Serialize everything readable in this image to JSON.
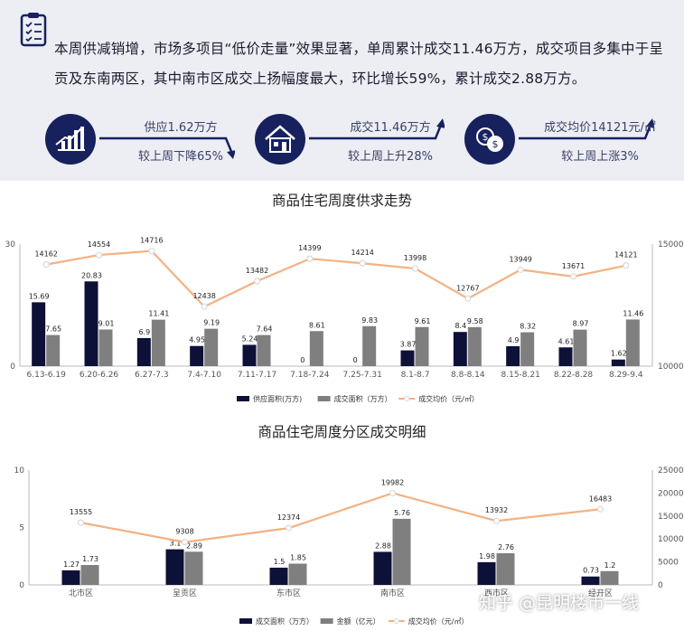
{
  "summary": {
    "text": "本周供减销增，市场多项目“低价走量”效果显著，单周累计成交11.46万方，成交项目多集中于呈贡及东南两区，其中南市区成交上扬幅度最大，环比增长59%，累计成交2.88万方。"
  },
  "stats": [
    {
      "line1": "供应1.62万方",
      "line2": "较上周下降65%",
      "icon": "bar-chart-icon"
    },
    {
      "line1": "成交11.46万方",
      "line2": "较上周上升28%",
      "icon": "house-icon"
    },
    {
      "line1": "成交均价14121元/㎡",
      "line2": "较上周上涨3%",
      "icon": "dollar-coins-icon"
    }
  ],
  "colors": {
    "navy": "#0d1137",
    "gray": "#7f7f7f",
    "orange": "#f4b183",
    "banner": "#eceef4",
    "icon": "#17215e"
  },
  "watermark": "知乎 @昆明楼市一线",
  "chart_data": [
    {
      "type": "bar",
      "title": "商品住宅周度供求走势",
      "categories": [
        "6.13-6.19",
        "6.20-6.26",
        "6.27-7.3",
        "7.4-7.10",
        "7.11-7.17",
        "7.18-7.24",
        "7.25-7.31",
        "8.1-8.7",
        "8.8-8.14",
        "8.15-8.21",
        "8.22-8.28",
        "8.29-9.4"
      ],
      "series": [
        {
          "name": "供应面积(万方)",
          "type": "bar",
          "axis": "left",
          "values": [
            15.69,
            20.83,
            6.9,
            4.95,
            5.24,
            0,
            0,
            3.87,
            8.4,
            4.9,
            4.61,
            1.62
          ]
        },
        {
          "name": "成交面积（万方）",
          "type": "bar",
          "axis": "left",
          "values": [
            7.65,
            9.01,
            11.41,
            9.19,
            7.64,
            8.61,
            9.83,
            9.61,
            9.58,
            8.32,
            8.97,
            11.46
          ]
        },
        {
          "name": "成交均价（元/㎡）",
          "type": "line",
          "axis": "right",
          "values": [
            14162,
            14554,
            14716,
            12438,
            13482,
            14399,
            14214,
            13998,
            12767,
            13949,
            13671,
            14121
          ]
        }
      ],
      "y_left": {
        "min": 0,
        "max": 30,
        "ticks": [
          "0",
          "30"
        ]
      },
      "y_right": {
        "min": 10000,
        "max": 15000,
        "ticks": [
          "10000",
          "15000"
        ]
      },
      "legend_position": "bottom"
    },
    {
      "type": "bar",
      "title": "商品住宅周度分区成交明细",
      "categories": [
        "北市区",
        "呈贡区",
        "东市区",
        "南市区",
        "西市区",
        "经开区"
      ],
      "series": [
        {
          "name": "成交面积（万方）",
          "type": "bar",
          "axis": "left",
          "values": [
            1.27,
            3.1,
            1.5,
            2.88,
            1.98,
            0.73
          ]
        },
        {
          "name": "金额（亿元）",
          "type": "bar",
          "axis": "left",
          "values": [
            1.73,
            2.89,
            1.85,
            5.76,
            2.76,
            1.2
          ]
        },
        {
          "name": "成交均价（元/㎡）",
          "type": "line",
          "axis": "right",
          "values": [
            13555,
            9308,
            12374,
            19982,
            13932,
            16483
          ]
        }
      ],
      "y_left": {
        "min": 0,
        "max": 10,
        "ticks": [
          "0",
          "5",
          "10"
        ]
      },
      "y_right": {
        "min": 0,
        "max": 25000,
        "ticks": [
          "0",
          "5000",
          "10000",
          "15000",
          "20000",
          "25000"
        ]
      },
      "legend_position": "bottom"
    }
  ]
}
